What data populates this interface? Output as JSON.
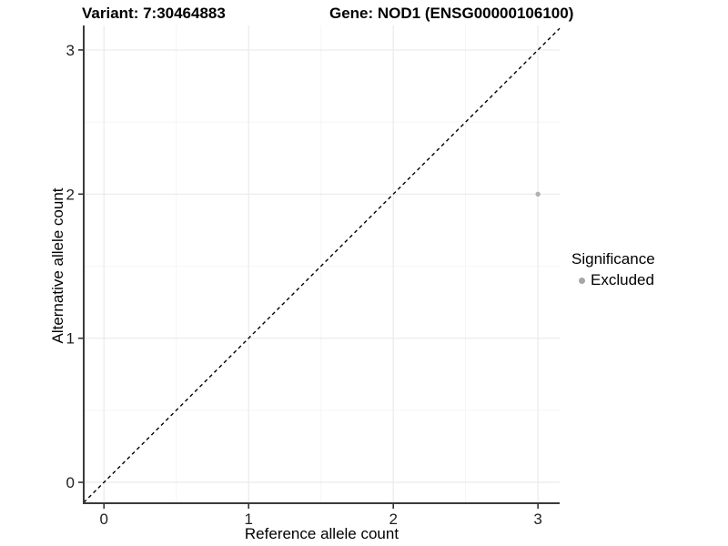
{
  "colors": {
    "background": "#ffffff",
    "grid_major": "#eaeaea",
    "grid_minor": "#f5f5f5",
    "axis_line": "#3a3a3a",
    "tick_mark": "#333333",
    "tick_text": "#1f1f1f",
    "reference_line": "#000000"
  },
  "chart_data": {
    "type": "scatter",
    "title_left": "Variant: 7:30464883",
    "title_right": "Gene: NOD1 (ENSG00000106100)",
    "xlabel": "Reference allele count",
    "ylabel": "Alternative allele count",
    "xlim": [
      -0.14,
      3.15
    ],
    "ylim": [
      -0.145,
      3.17
    ],
    "x_ticks": [
      0,
      1,
      2,
      3
    ],
    "y_ticks": [
      0,
      1,
      2,
      3
    ],
    "x_minor_ticks": [
      0.5,
      1.5,
      2.5
    ],
    "y_minor_ticks": [
      0.5,
      1.5,
      2.5
    ],
    "grid": true,
    "series": [
      {
        "name": "Excluded",
        "color": "#b1b1b1",
        "marker": "circle",
        "points": [
          {
            "x": 3,
            "y": 2
          }
        ]
      }
    ],
    "reference_line": {
      "slope": 1,
      "intercept": 0,
      "style": "dashed"
    },
    "legend": {
      "position": "right",
      "title": "Significance",
      "entries": [
        {
          "label": "Excluded",
          "marker": "circle",
          "color": "#a6a6a6"
        }
      ]
    }
  }
}
